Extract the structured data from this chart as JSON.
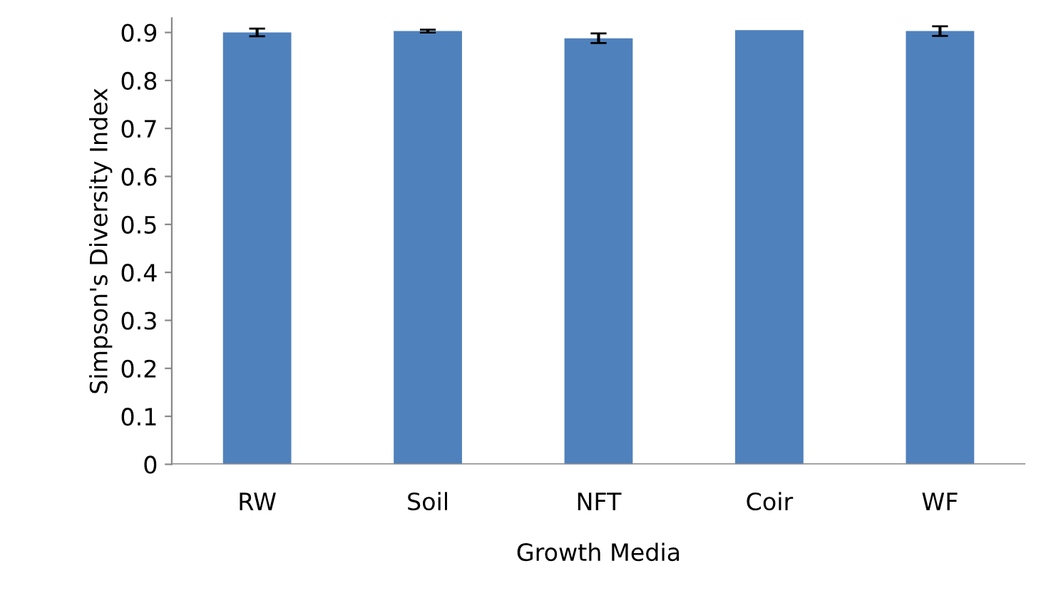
{
  "chart_data": {
    "type": "bar",
    "xlabel": "Growth Media",
    "ylabel": "Simpson's Diversity Index",
    "categories": [
      "RW",
      "Soil",
      "NFT",
      "Coir",
      "WF"
    ],
    "values": [
      0.9,
      0.903,
      0.888,
      0.905,
      0.903
    ],
    "errors": [
      0.008,
      0.003,
      0.01,
      null,
      0.01
    ],
    "color": "#4f81bd",
    "ylim": [
      0,
      0.93
    ],
    "yticks": [
      {
        "value": 0,
        "label": "0"
      },
      0.1,
      0.2,
      0.3,
      0.4,
      0.5,
      0.6,
      0.7,
      0.8,
      0.9
    ],
    "grid": false
  }
}
